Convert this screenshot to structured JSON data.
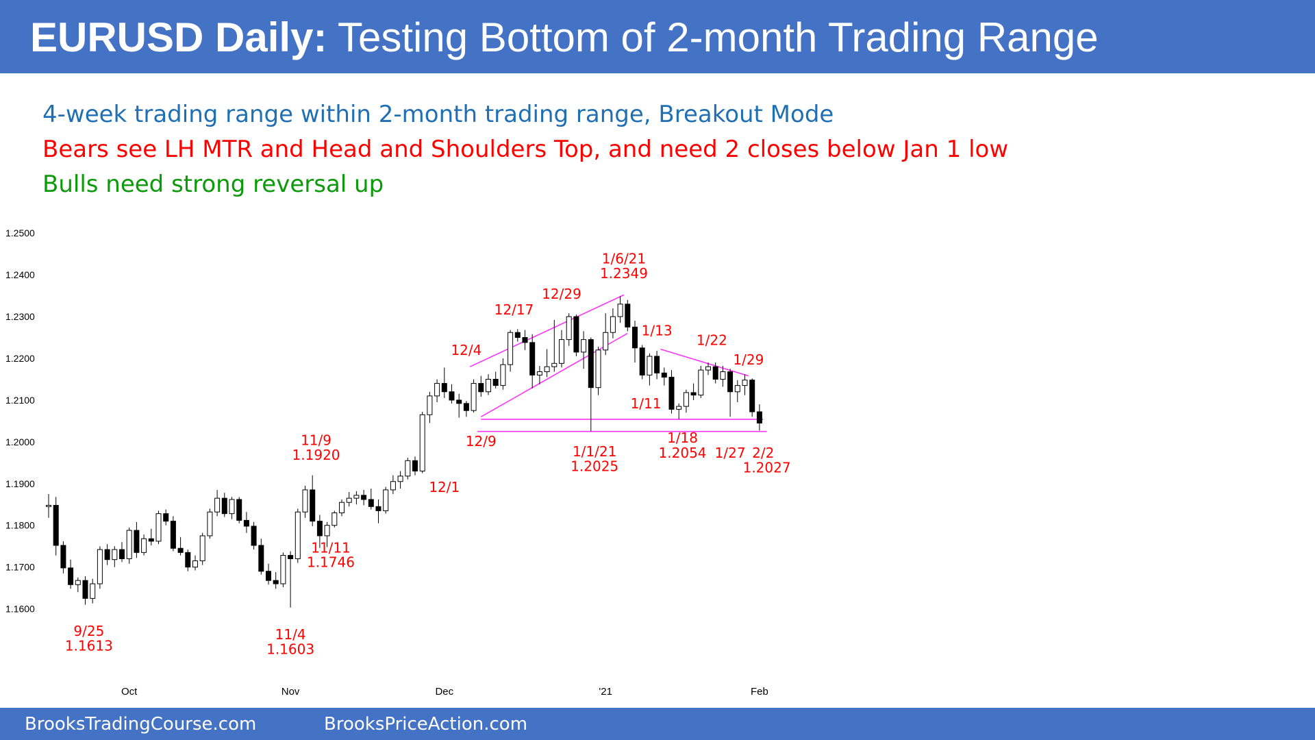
{
  "header": {
    "title_bold": "EURUSD Daily:",
    "title_rest": "Testing Bottom of 2-month Trading Range"
  },
  "notes": [
    {
      "text": "4-week trading range within 2-month trading range, Breakout Mode",
      "color": "#1f6fb5"
    },
    {
      "text": "Bears see LH MTR and Head and Shoulders Top, and need 2 closes below Jan 1 low",
      "color": "#ff0000"
    },
    {
      "text": "Bulls need strong reversal up",
      "color": "#0a9a0a"
    }
  ],
  "footer": {
    "link1": "BrooksTradingCourse.com",
    "link2": "BrooksPriceAction.com"
  },
  "chart_data": {
    "type": "candlestick",
    "y_ticks": [
      "1.2500",
      "1.2400",
      "1.2300",
      "1.2200",
      "1.2100",
      "1.2000",
      "1.1900",
      "1.1800",
      "1.1700",
      "1.1600"
    ],
    "ylim": [
      1.1555,
      1.2525
    ],
    "x_ticks": [
      {
        "label": "Oct",
        "bar": 11
      },
      {
        "label": "Nov",
        "bar": 33
      },
      {
        "label": "Dec",
        "bar": 54
      },
      {
        "label": "'21",
        "bar": 76
      },
      {
        "label": "Feb",
        "bar": 97
      }
    ],
    "colors": {
      "bull": "#ffffff",
      "bear": "#000000",
      "annotation": "#ff0000",
      "trendline": "#ff33ff",
      "axis_text": "#000000"
    },
    "candles": [
      [
        1.1845,
        1.1875,
        1.1818,
        1.1848
      ],
      [
        1.1848,
        1.1868,
        1.1728,
        1.1752
      ],
      [
        1.1752,
        1.1762,
        1.1685,
        1.1698
      ],
      [
        1.1698,
        1.1718,
        1.1648,
        1.1658
      ],
      [
        1.1658,
        1.1675,
        1.164,
        1.1668
      ],
      [
        1.1668,
        1.1678,
        1.161,
        1.1625
      ],
      [
        1.1625,
        1.1672,
        1.1613,
        1.166
      ],
      [
        1.166,
        1.175,
        1.1648,
        1.1742
      ],
      [
        1.1742,
        1.1755,
        1.1705,
        1.1718
      ],
      [
        1.1718,
        1.175,
        1.17,
        1.1742
      ],
      [
        1.1742,
        1.176,
        1.1712,
        1.172
      ],
      [
        1.172,
        1.1795,
        1.1708,
        1.1788
      ],
      [
        1.1788,
        1.1808,
        1.1722,
        1.1735
      ],
      [
        1.1735,
        1.1778,
        1.1728,
        1.1768
      ],
      [
        1.1768,
        1.1792,
        1.1752,
        1.1762
      ],
      [
        1.1762,
        1.1835,
        1.1755,
        1.1828
      ],
      [
        1.1828,
        1.1838,
        1.18,
        1.181
      ],
      [
        1.181,
        1.1822,
        1.1738,
        1.1745
      ],
      [
        1.1745,
        1.1772,
        1.1728,
        1.1735
      ],
      [
        1.1735,
        1.1742,
        1.169,
        1.17
      ],
      [
        1.17,
        1.1728,
        1.1692,
        1.1715
      ],
      [
        1.1715,
        1.1782,
        1.1705,
        1.1775
      ],
      [
        1.1775,
        1.184,
        1.1768,
        1.1832
      ],
      [
        1.1832,
        1.1885,
        1.1822,
        1.1865
      ],
      [
        1.1865,
        1.1878,
        1.182,
        1.1828
      ],
      [
        1.1828,
        1.1868,
        1.1815,
        1.1862
      ],
      [
        1.1862,
        1.1868,
        1.1805,
        1.1812
      ],
      [
        1.1812,
        1.1832,
        1.1782,
        1.1798
      ],
      [
        1.1798,
        1.1808,
        1.1742,
        1.1752
      ],
      [
        1.1752,
        1.1768,
        1.1682,
        1.169
      ],
      [
        1.169,
        1.1708,
        1.1658,
        1.1668
      ],
      [
        1.1668,
        1.1688,
        1.1648,
        1.166
      ],
      [
        1.166,
        1.1735,
        1.1652,
        1.1728
      ],
      [
        1.1728,
        1.1738,
        1.1603,
        1.172
      ],
      [
        1.172,
        1.184,
        1.171,
        1.1832
      ],
      [
        1.1832,
        1.1895,
        1.1818,
        1.1885
      ],
      [
        1.1885,
        1.192,
        1.1798,
        1.181
      ],
      [
        1.181,
        1.1825,
        1.1746,
        1.1775
      ],
      [
        1.1775,
        1.1808,
        1.1748,
        1.18
      ],
      [
        1.18,
        1.1835,
        1.1795,
        1.183
      ],
      [
        1.183,
        1.1862,
        1.1822,
        1.1855
      ],
      [
        1.1855,
        1.188,
        1.1845,
        1.1865
      ],
      [
        1.1865,
        1.1882,
        1.185,
        1.1872
      ],
      [
        1.1872,
        1.1885,
        1.1848,
        1.1862
      ],
      [
        1.1862,
        1.1888,
        1.1838,
        1.1845
      ],
      [
        1.1845,
        1.1862,
        1.1805,
        1.1835
      ],
      [
        1.1835,
        1.1892,
        1.1828,
        1.1885
      ],
      [
        1.1885,
        1.192,
        1.1875,
        1.1905
      ],
      [
        1.1905,
        1.193,
        1.1888,
        1.1918
      ],
      [
        1.1918,
        1.1962,
        1.191,
        1.1955
      ],
      [
        1.1955,
        1.1965,
        1.192,
        1.193
      ],
      [
        1.193,
        1.2072,
        1.1925,
        1.2065
      ],
      [
        1.2065,
        1.212,
        1.2045,
        1.211
      ],
      [
        1.211,
        1.215,
        1.2095,
        1.214
      ],
      [
        1.214,
        1.2178,
        1.2105,
        1.212
      ],
      [
        1.212,
        1.2138,
        1.2092,
        1.21
      ],
      [
        1.21,
        1.2115,
        1.2058,
        1.2092
      ],
      [
        1.2092,
        1.2098,
        1.206,
        1.2075
      ],
      [
        1.2075,
        1.215,
        1.207,
        1.214
      ],
      [
        1.214,
        1.2158,
        1.2108,
        1.212
      ],
      [
        1.212,
        1.2162,
        1.2112,
        1.215
      ],
      [
        1.215,
        1.2168,
        1.2128,
        1.2135
      ],
      [
        1.2135,
        1.22,
        1.2125,
        1.2185
      ],
      [
        1.2185,
        1.2268,
        1.2168,
        1.2262
      ],
      [
        1.2262,
        1.227,
        1.224,
        1.225
      ],
      [
        1.225,
        1.2268,
        1.222,
        1.2238
      ],
      [
        1.2238,
        1.2258,
        1.2128,
        1.216
      ],
      [
        1.216,
        1.2182,
        1.2138,
        1.2168
      ],
      [
        1.2168,
        1.2222,
        1.2155,
        1.218
      ],
      [
        1.218,
        1.2292,
        1.2168,
        1.2188
      ],
      [
        1.2188,
        1.2268,
        1.2178,
        1.2245
      ],
      [
        1.2245,
        1.2308,
        1.223,
        1.23
      ],
      [
        1.23,
        1.2305,
        1.2205,
        1.2215
      ],
      [
        1.2215,
        1.2265,
        1.2175,
        1.2245
      ],
      [
        1.2245,
        1.225,
        1.2025,
        1.213
      ],
      [
        1.213,
        1.2228,
        1.2112,
        1.222
      ],
      [
        1.222,
        1.2308,
        1.2208,
        1.2262
      ],
      [
        1.2262,
        1.232,
        1.2248,
        1.23
      ],
      [
        1.23,
        1.2349,
        1.2285,
        1.233
      ],
      [
        1.233,
        1.234,
        1.2265,
        1.2275
      ],
      [
        1.2275,
        1.229,
        1.219,
        1.2225
      ],
      [
        1.2225,
        1.2232,
        1.215,
        1.216
      ],
      [
        1.216,
        1.2212,
        1.2135,
        1.2205
      ],
      [
        1.2205,
        1.2218,
        1.215,
        1.2165
      ],
      [
        1.2165,
        1.2178,
        1.2135,
        1.2155
      ],
      [
        1.2155,
        1.2172,
        1.2068,
        1.2078
      ],
      [
        1.2078,
        1.2092,
        1.2054,
        1.2085
      ],
      [
        1.2085,
        1.2125,
        1.207,
        1.2118
      ],
      [
        1.2118,
        1.214,
        1.21,
        1.2112
      ],
      [
        1.2112,
        1.2182,
        1.2105,
        1.2172
      ],
      [
        1.2172,
        1.219,
        1.216,
        1.218
      ],
      [
        1.218,
        1.219,
        1.214,
        1.215
      ],
      [
        1.215,
        1.2182,
        1.2132,
        1.2168
      ],
      [
        1.2168,
        1.2175,
        1.206,
        1.212
      ],
      [
        1.212,
        1.2148,
        1.2095,
        1.2135
      ],
      [
        1.2135,
        1.2162,
        1.2112,
        1.2148
      ],
      [
        1.2148,
        1.2152,
        1.206,
        1.2072
      ],
      [
        1.2072,
        1.209,
        1.2027,
        1.2045
      ]
    ],
    "annotations": [
      {
        "text": "9/25",
        "bar": 5.5,
        "price": 1.1535
      },
      {
        "text": "1.1613",
        "bar": 5.5,
        "price": 1.15
      },
      {
        "text": "11/4",
        "bar": 33,
        "price": 1.1527
      },
      {
        "text": "1.1603",
        "bar": 33,
        "price": 1.1492
      },
      {
        "text": "11/9",
        "bar": 36.5,
        "price": 1.1992
      },
      {
        "text": "1.1920",
        "bar": 36.5,
        "price": 1.1957
      },
      {
        "text": "11/11",
        "bar": 38.5,
        "price": 1.1735
      },
      {
        "text": "1.1746",
        "bar": 38.5,
        "price": 1.17
      },
      {
        "text": "12/1",
        "bar": 54,
        "price": 1.188
      },
      {
        "text": "12/4",
        "bar": 57,
        "price": 1.2208
      },
      {
        "text": "12/9",
        "bar": 59,
        "price": 1.199
      },
      {
        "text": "12/17",
        "bar": 63.5,
        "price": 1.2305
      },
      {
        "text": "12/29",
        "bar": 70,
        "price": 1.2343
      },
      {
        "text": "1/1/21",
        "bar": 74.5,
        "price": 1.1965
      },
      {
        "text": "1.2025",
        "bar": 74.5,
        "price": 1.193
      },
      {
        "text": "1/6/21",
        "bar": 78.5,
        "price": 1.2427
      },
      {
        "text": "1.2349",
        "bar": 78.5,
        "price": 1.2392
      },
      {
        "text": "1/13",
        "bar": 83,
        "price": 1.2255
      },
      {
        "text": "1/11",
        "bar": 81.5,
        "price": 1.208
      },
      {
        "text": "1/18",
        "bar": 86.5,
        "price": 1.1998
      },
      {
        "text": "1.2054",
        "bar": 86.5,
        "price": 1.1962
      },
      {
        "text": "1/22",
        "bar": 90.5,
        "price": 1.2232
      },
      {
        "text": "1/27",
        "bar": 93,
        "price": 1.1962
      },
      {
        "text": "1/29",
        "bar": 95.5,
        "price": 1.2185
      },
      {
        "text": "2/2",
        "bar": 97.5,
        "price": 1.1962
      },
      {
        "text": "1.2027",
        "bar": 98,
        "price": 1.1927
      }
    ],
    "lines": [
      {
        "from": [
          57.5,
          1.218
        ],
        "to": [
          78.5,
          1.2352
        ]
      },
      {
        "from": [
          59,
          1.206
        ],
        "to": [
          79,
          1.226
        ]
      },
      {
        "from": [
          59,
          1.2054
        ],
        "to": [
          97.5,
          1.2054
        ]
      },
      {
        "from": [
          58.5,
          1.2025
        ],
        "to": [
          98,
          1.2025
        ]
      },
      {
        "from": [
          83.5,
          1.2222
        ],
        "to": [
          95.5,
          1.2158
        ]
      }
    ]
  }
}
